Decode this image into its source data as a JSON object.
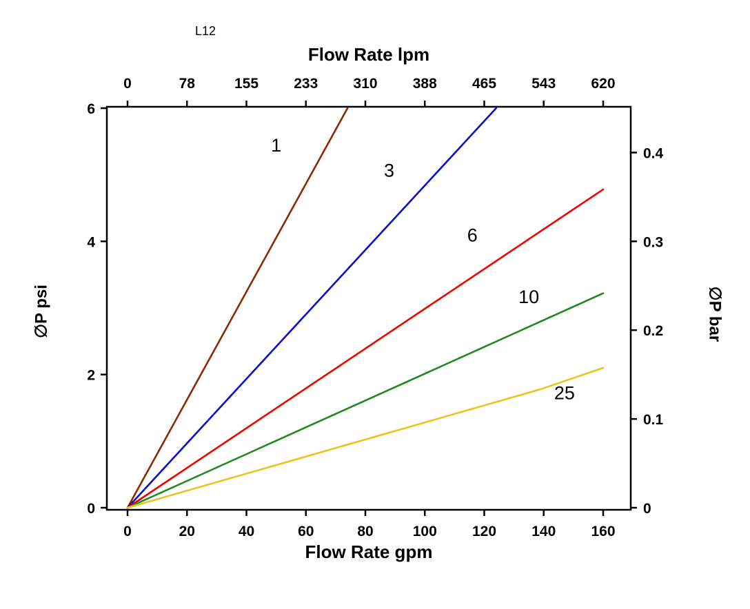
{
  "figure_title": "L12",
  "chart_data": {
    "type": "line",
    "title": "L12",
    "background": "#ffffff",
    "frame_color": "#000000",
    "axes": {
      "bottom": {
        "label": "Flow Rate gpm",
        "tick_labels": [
          "0",
          "20",
          "40",
          "60",
          "80",
          "100",
          "120",
          "140",
          "160"
        ],
        "tick_positions_gpm": [
          0,
          20,
          40,
          60,
          80,
          100,
          120,
          140,
          160
        ],
        "range_gpm": [
          0,
          160
        ]
      },
      "top": {
        "label": "Flow Rate lpm",
        "tick_labels": [
          "0",
          "78",
          "155",
          "233",
          "310",
          "388",
          "465",
          "543",
          "620"
        ],
        "tick_positions_gpm": [
          0,
          20,
          40,
          60,
          80,
          100,
          120,
          140,
          160
        ],
        "range_lpm": [
          0,
          620
        ]
      },
      "left": {
        "label": "∅P psi",
        "tick_labels": [
          "0",
          "2",
          "4",
          "6"
        ],
        "tick_positions_psi": [
          0,
          2,
          4,
          6
        ],
        "range_psi": [
          0,
          6
        ]
      },
      "right": {
        "label": "∅P bar",
        "tick_labels": [
          "0",
          "0.1",
          "0.2",
          "0.3",
          "0.4"
        ],
        "tick_positions_psi": [
          0,
          1.333,
          2.667,
          4.0,
          5.333
        ],
        "range_bar": [
          0,
          0.45
        ]
      }
    },
    "series": [
      {
        "name": "1",
        "color": "#8b2a00",
        "points_gpm_psi": [
          [
            0,
            0
          ],
          [
            74,
            6
          ]
        ],
        "label": {
          "text": "1",
          "x_gpm": 50,
          "y_psi": 5.35
        }
      },
      {
        "name": "3",
        "color": "#0a0ad0",
        "points_gpm_psi": [
          [
            0,
            0
          ],
          [
            124,
            6
          ]
        ],
        "label": {
          "text": "3",
          "x_gpm": 88,
          "y_psi": 4.97
        }
      },
      {
        "name": "6",
        "color": "#f40000",
        "points_gpm_psi": [
          [
            0,
            0
          ],
          [
            160,
            4.78
          ]
        ],
        "label": {
          "text": "6",
          "x_gpm": 116,
          "y_psi": 4.0
        }
      },
      {
        "name": "10",
        "color": "#1e8a1e",
        "points_gpm_psi": [
          [
            0,
            0
          ],
          [
            160,
            3.22
          ]
        ],
        "label": {
          "text": "10",
          "x_gpm": 135,
          "y_psi": 3.07
        }
      },
      {
        "name": "25",
        "color": "#e9c419",
        "points_gpm_psi": [
          [
            0,
            0
          ],
          [
            139,
            1.78
          ],
          [
            160,
            2.1
          ]
        ],
        "label": {
          "text": "25",
          "x_gpm": 147,
          "y_psi": 1.63
        }
      }
    ]
  }
}
